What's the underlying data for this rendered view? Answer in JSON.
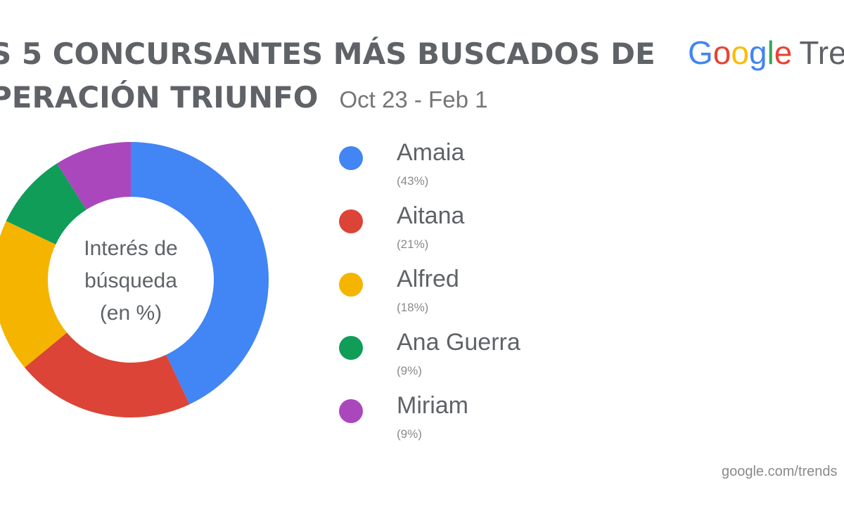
{
  "header": {
    "title_line_1": "S 5 CONCURSANTES MÁS BUSCADOS DE",
    "title_line_2": "PERACIÓN TRIUNFO",
    "date_range": "Oct 23 - Feb 1"
  },
  "logo": {
    "google_letters": [
      "G",
      "o",
      "o",
      "g",
      "l",
      "e"
    ],
    "trends_text": "Tren",
    "colors": [
      "#4285f4",
      "#ea4335",
      "#fbbc05",
      "#4285f4",
      "#34a853",
      "#ea4335"
    ]
  },
  "chart_data": {
    "type": "pie",
    "variant": "donut",
    "center_label_lines": [
      "Interés de",
      "búsqueda",
      "(en %)"
    ],
    "categories": [
      "Amaia",
      "Aitana",
      "Alfred",
      "Ana Guerra",
      "Miriam"
    ],
    "values": [
      43,
      21,
      18,
      9,
      9
    ],
    "value_labels": [
      "(43%)",
      "(21%)",
      "(18%)",
      "(9%)",
      "(9%)"
    ],
    "colors": [
      "#4285f4",
      "#db4437",
      "#f4b400",
      "#0f9d58",
      "#ab47bc"
    ],
    "legend_placement": "right"
  },
  "footer": {
    "url": "google.com/trends"
  }
}
